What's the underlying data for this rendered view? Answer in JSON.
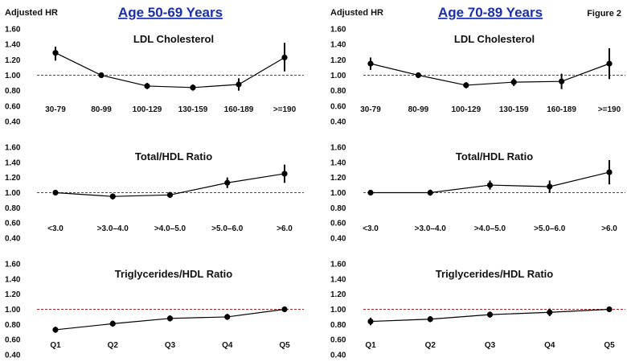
{
  "figure_label": "Figure 2",
  "colors": {
    "reference_line": "#b02020",
    "heading": "#1b2fa8",
    "marker": "#000000"
  },
  "chart_data": [
    {
      "type": "line",
      "column_heading": "Age 50-69 Years",
      "ylabel": "Adjusted HR",
      "title": "LDL Cholesterol",
      "categories": [
        "30-79",
        "80-99",
        "100-129",
        "130-159",
        "160-189",
        ">=190"
      ],
      "values": [
        1.29,
        1.0,
        0.86,
        0.84,
        0.88,
        1.23
      ],
      "ci_low": [
        1.19,
        1.0,
        0.82,
        0.8,
        0.8,
        1.05
      ],
      "ci_high": [
        1.37,
        1.0,
        0.9,
        0.88,
        0.96,
        1.42
      ],
      "ylim": [
        0.4,
        1.6
      ],
      "yticks": [
        "1.60",
        "1.40",
        "1.20",
        "1.00",
        "0.80",
        "0.60",
        "0.40"
      ],
      "reference": 1.0
    },
    {
      "type": "line",
      "ylabel": "",
      "title": "Total/HDL Ratio",
      "categories": [
        "<3.0",
        ">3.0–4.0",
        ">4.0–5.0",
        ">5.0–6.0",
        ">6.0"
      ],
      "values": [
        1.0,
        0.95,
        0.97,
        1.13,
        1.25
      ],
      "ci_low": [
        1.0,
        0.91,
        0.93,
        1.06,
        1.13
      ],
      "ci_high": [
        1.0,
        0.99,
        1.01,
        1.2,
        1.37
      ],
      "ylim": [
        0.4,
        1.6
      ],
      "yticks": [
        "1.60",
        "1.40",
        "1.20",
        "1.00",
        "0.80",
        "0.60",
        "0.40"
      ],
      "reference": 1.0
    },
    {
      "type": "line",
      "ylabel": "",
      "title": "Triglycerides/HDL Ratio",
      "categories": [
        "Q1",
        "Q2",
        "Q3",
        "Q4",
        "Q5"
      ],
      "values": [
        0.73,
        0.81,
        0.88,
        0.9,
        1.0
      ],
      "ci_low": [
        0.69,
        0.77,
        0.84,
        0.86,
        1.0
      ],
      "ci_high": [
        0.77,
        0.85,
        0.92,
        0.94,
        1.0
      ],
      "ylim": [
        0.4,
        1.6
      ],
      "yticks": [
        "1.60",
        "1.40",
        "1.20",
        "1.00",
        "0.80",
        "0.60",
        "0.40"
      ],
      "reference": 1.0
    },
    {
      "type": "line",
      "column_heading": "Age 70-89 Years",
      "ylabel": "Adjusted HR",
      "title": "LDL Cholesterol",
      "categories": [
        "30-79",
        "80-99",
        "100-129",
        "130-159",
        "160-189",
        ">=190"
      ],
      "values": [
        1.15,
        1.0,
        0.87,
        0.91,
        0.92,
        1.15
      ],
      "ci_low": [
        1.07,
        1.0,
        0.83,
        0.86,
        0.82,
        0.95
      ],
      "ci_high": [
        1.23,
        1.0,
        0.91,
        0.96,
        1.02,
        1.35
      ],
      "ylim": [
        0.4,
        1.6
      ],
      "yticks": [
        "1.60",
        "1.40",
        "1.20",
        "1.00",
        "0.80",
        "0.60",
        "0.40"
      ],
      "reference": 1.0
    },
    {
      "type": "line",
      "ylabel": "",
      "title": "Total/HDL Ratio",
      "categories": [
        "<3.0",
        ">3.0–4.0",
        ">4.0–5.0",
        ">5.0–6.0",
        ">6.0"
      ],
      "values": [
        1.0,
        1.0,
        1.1,
        1.08,
        1.27
      ],
      "ci_low": [
        1.0,
        0.96,
        1.04,
        1.0,
        1.11
      ],
      "ci_high": [
        1.0,
        1.04,
        1.16,
        1.16,
        1.43
      ],
      "ylim": [
        0.4,
        1.6
      ],
      "yticks": [
        "1.60",
        "1.40",
        "1.20",
        "1.00",
        "0.80",
        "0.60",
        "0.40"
      ],
      "reference": 1.0
    },
    {
      "type": "line",
      "ylabel": "",
      "title": "Triglycerides/HDL Ratio",
      "categories": [
        "Q1",
        "Q2",
        "Q3",
        "Q4",
        "Q5"
      ],
      "values": [
        0.84,
        0.87,
        0.93,
        0.96,
        1.0
      ],
      "ci_low": [
        0.79,
        0.83,
        0.89,
        0.91,
        1.0
      ],
      "ci_high": [
        0.89,
        0.91,
        0.97,
        1.01,
        1.0
      ],
      "ylim": [
        0.4,
        1.6
      ],
      "yticks": [
        "1.60",
        "1.40",
        "1.20",
        "1.00",
        "0.80",
        "0.60",
        "0.40"
      ],
      "reference": 1.0
    }
  ]
}
